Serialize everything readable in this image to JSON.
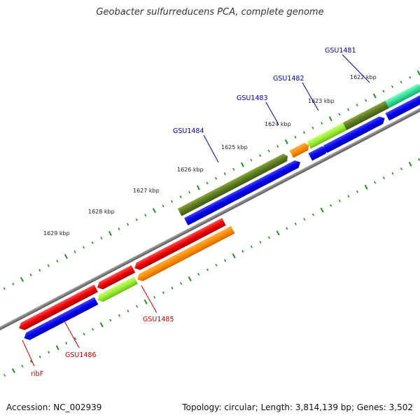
{
  "title": "Geobacter sulfurreducens PCA, complete genome",
  "accession": "Accession: NC_002939",
  "summary": "Topology: circular; Length: 3,814,139 bp; Genes: 3,502",
  "scale_labels": [
    "1622 kbp",
    "1623 kbp",
    "1624 kbp",
    "1625 kbp",
    "1626 kbp",
    "1627 kbp",
    "1628 kbp",
    "1629 kbp"
  ],
  "colors": {
    "backbone": "#808080",
    "tick": "#2a8a2a",
    "forward_label": "#0000aa",
    "reverse_label": "#cc0000",
    "blue": "#0000ee",
    "red": "#ee0000",
    "orange": "#ff8c00",
    "olive": "#5a7a20",
    "lime": "#99ee33",
    "teal": "#33dd99"
  },
  "gene_labels": [
    {
      "id": "GSU1481",
      "strand": "forward"
    },
    {
      "id": "GSU1482",
      "strand": "forward"
    },
    {
      "id": "GSU1483",
      "strand": "forward"
    },
    {
      "id": "GSU1484",
      "strand": "forward"
    },
    {
      "id": "GSU1485",
      "strand": "reverse"
    },
    {
      "id": "GSU1486",
      "strand": "reverse"
    },
    {
      "id": "ribF",
      "strand": "reverse"
    }
  ]
}
